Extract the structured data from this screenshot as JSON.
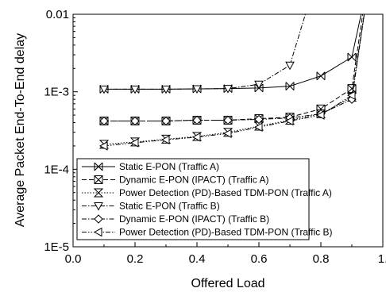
{
  "chart_data": {
    "type": "line",
    "title": "",
    "xlabel": "Offered Load",
    "ylabel": "Average Packet End-To-End delay",
    "xlim": [
      0.0,
      1.0
    ],
    "ylim": [
      1e-05,
      0.01
    ],
    "yscale": "log",
    "x_ticks": [
      "0.0",
      "0.2",
      "0.4",
      "0.6",
      "0.8",
      "1."
    ],
    "y_ticks": [
      "1E-5",
      "1E-4",
      "1E-3",
      "0.01"
    ],
    "grid": false,
    "legend_position": "bottom-left",
    "series": [
      {
        "name": "Static E-PON (Traffic A)",
        "line": "solid",
        "marker": "x-bar",
        "x": [
          0.1,
          0.2,
          0.3,
          0.4,
          0.5,
          0.6,
          0.7,
          0.8,
          0.9,
          0.93
        ],
        "y": [
          0.00108,
          0.00108,
          0.00108,
          0.00109,
          0.0011,
          0.00112,
          0.00118,
          0.0016,
          0.0028,
          0.01
        ]
      },
      {
        "name": "Dynamic E-PON (IPACT) (Traffic A)",
        "line": "dash",
        "marker": "square-x",
        "x": [
          0.1,
          0.2,
          0.3,
          0.4,
          0.5,
          0.6,
          0.7,
          0.8,
          0.9,
          0.935
        ],
        "y": [
          0.00042,
          0.00042,
          0.00042,
          0.00043,
          0.00043,
          0.00045,
          0.00047,
          0.0006,
          0.0011,
          0.01
        ]
      },
      {
        "name": "Power Detection (PD)-Based TDM-PON (Traffic A)",
        "line": "dot",
        "marker": "hourglass",
        "x": [
          0.1,
          0.2,
          0.3,
          0.4,
          0.5,
          0.6,
          0.7,
          0.8,
          0.9,
          0.94
        ],
        "y": [
          0.00021,
          0.000225,
          0.000245,
          0.000265,
          0.0003,
          0.00036,
          0.00043,
          0.00052,
          0.00085,
          0.01
        ]
      },
      {
        "name": "Static E-PON (Traffic B)",
        "line": "dashdot",
        "marker": "triangle-down",
        "x": [
          0.1,
          0.2,
          0.3,
          0.4,
          0.5,
          0.6,
          0.7,
          0.75
        ],
        "y": [
          0.00108,
          0.00108,
          0.00108,
          0.00109,
          0.0011,
          0.00125,
          0.0022,
          0.01
        ]
      },
      {
        "name": "Dynamic E-PON (IPACT) (Traffic B)",
        "line": "dashdot",
        "marker": "diamond",
        "x": [
          0.1,
          0.2,
          0.3,
          0.4,
          0.5,
          0.6,
          0.7,
          0.8,
          0.9,
          0.94
        ],
        "y": [
          0.00042,
          0.00042,
          0.00042,
          0.00043,
          0.00043,
          0.00044,
          0.00046,
          0.00052,
          0.0008,
          0.01
        ]
      },
      {
        "name": "Power Detection (PD)-Based TDM-PON (Traffic B)",
        "line": "dashdotdot",
        "marker": "triangle-left",
        "x": [
          0.1,
          0.2,
          0.3,
          0.4,
          0.5,
          0.6,
          0.7,
          0.8,
          0.9,
          0.94
        ],
        "y": [
          0.0002,
          0.00022,
          0.00024,
          0.00026,
          0.00029,
          0.00035,
          0.00042,
          0.0005,
          0.0009,
          0.01
        ]
      }
    ]
  }
}
